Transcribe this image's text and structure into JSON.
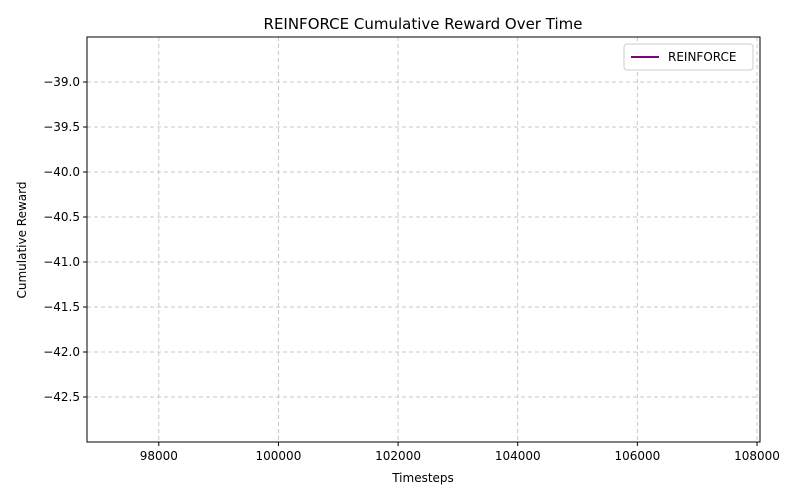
{
  "chart_data": {
    "type": "line",
    "title": "REINFORCE Cumulative Reward Over Time",
    "xlabel": "Timesteps",
    "ylabel": "Cumulative Reward",
    "xlim": [
      96800,
      108050
    ],
    "ylim": [
      -43.0,
      -38.5
    ],
    "x_ticks": [
      98000,
      100000,
      102000,
      104000,
      106000,
      108000
    ],
    "y_ticks": [
      -39.0,
      -39.5,
      -40.0,
      -40.5,
      -41.0,
      -41.5,
      -42.0,
      -42.5
    ],
    "x_tick_labels": [
      "98000",
      "100000",
      "102000",
      "104000",
      "106000",
      "108000"
    ],
    "y_tick_labels": [
      "−39.0",
      "−39.5",
      "−40.0",
      "−40.5",
      "−41.0",
      "−41.5",
      "−42.0",
      "−42.5"
    ],
    "grid": true,
    "legend_position": "top-right",
    "series": [
      {
        "name": "REINFORCE",
        "color": "#800080",
        "x": [],
        "y": []
      }
    ]
  }
}
